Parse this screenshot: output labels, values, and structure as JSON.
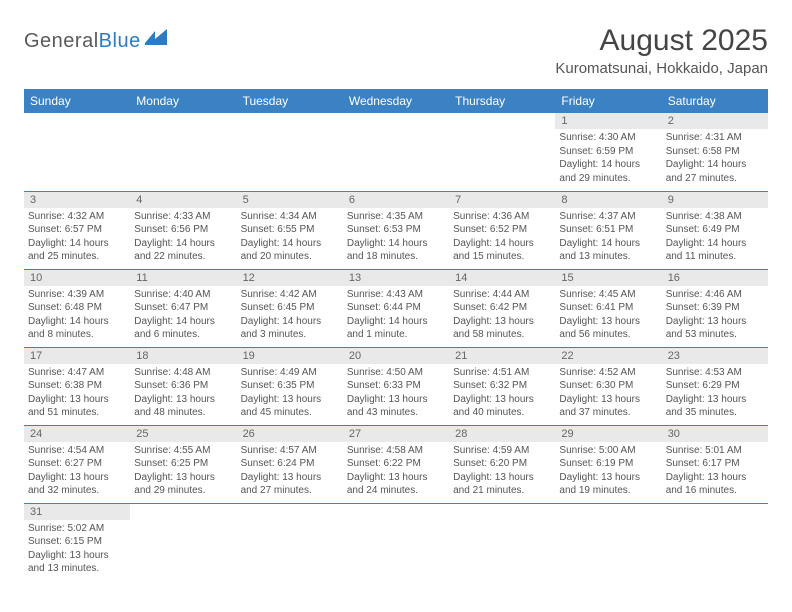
{
  "logo": {
    "part1": "General",
    "part2": "Blue"
  },
  "title": "August 2025",
  "location": "Kuromatsunai, Hokkaido, Japan",
  "colors": {
    "header_bg": "#3b82c4",
    "header_text": "#ffffff",
    "daynum_bg": "#e9e9e9",
    "text": "#555555",
    "logo_gray": "#5a5a5a",
    "logo_blue": "#2d7bc0",
    "row_border": "#3b82c4"
  },
  "dayNames": [
    "Sunday",
    "Monday",
    "Tuesday",
    "Wednesday",
    "Thursday",
    "Friday",
    "Saturday"
  ],
  "weeks": [
    [
      null,
      null,
      null,
      null,
      null,
      {
        "n": "1",
        "sr": "4:30 AM",
        "ss": "6:59 PM",
        "dl": "14 hours and 29 minutes."
      },
      {
        "n": "2",
        "sr": "4:31 AM",
        "ss": "6:58 PM",
        "dl": "14 hours and 27 minutes."
      }
    ],
    [
      {
        "n": "3",
        "sr": "4:32 AM",
        "ss": "6:57 PM",
        "dl": "14 hours and 25 minutes."
      },
      {
        "n": "4",
        "sr": "4:33 AM",
        "ss": "6:56 PM",
        "dl": "14 hours and 22 minutes."
      },
      {
        "n": "5",
        "sr": "4:34 AM",
        "ss": "6:55 PM",
        "dl": "14 hours and 20 minutes."
      },
      {
        "n": "6",
        "sr": "4:35 AM",
        "ss": "6:53 PM",
        "dl": "14 hours and 18 minutes."
      },
      {
        "n": "7",
        "sr": "4:36 AM",
        "ss": "6:52 PM",
        "dl": "14 hours and 15 minutes."
      },
      {
        "n": "8",
        "sr": "4:37 AM",
        "ss": "6:51 PM",
        "dl": "14 hours and 13 minutes."
      },
      {
        "n": "9",
        "sr": "4:38 AM",
        "ss": "6:49 PM",
        "dl": "14 hours and 11 minutes."
      }
    ],
    [
      {
        "n": "10",
        "sr": "4:39 AM",
        "ss": "6:48 PM",
        "dl": "14 hours and 8 minutes."
      },
      {
        "n": "11",
        "sr": "4:40 AM",
        "ss": "6:47 PM",
        "dl": "14 hours and 6 minutes."
      },
      {
        "n": "12",
        "sr": "4:42 AM",
        "ss": "6:45 PM",
        "dl": "14 hours and 3 minutes."
      },
      {
        "n": "13",
        "sr": "4:43 AM",
        "ss": "6:44 PM",
        "dl": "14 hours and 1 minute."
      },
      {
        "n": "14",
        "sr": "4:44 AM",
        "ss": "6:42 PM",
        "dl": "13 hours and 58 minutes."
      },
      {
        "n": "15",
        "sr": "4:45 AM",
        "ss": "6:41 PM",
        "dl": "13 hours and 56 minutes."
      },
      {
        "n": "16",
        "sr": "4:46 AM",
        "ss": "6:39 PM",
        "dl": "13 hours and 53 minutes."
      }
    ],
    [
      {
        "n": "17",
        "sr": "4:47 AM",
        "ss": "6:38 PM",
        "dl": "13 hours and 51 minutes."
      },
      {
        "n": "18",
        "sr": "4:48 AM",
        "ss": "6:36 PM",
        "dl": "13 hours and 48 minutes."
      },
      {
        "n": "19",
        "sr": "4:49 AM",
        "ss": "6:35 PM",
        "dl": "13 hours and 45 minutes."
      },
      {
        "n": "20",
        "sr": "4:50 AM",
        "ss": "6:33 PM",
        "dl": "13 hours and 43 minutes."
      },
      {
        "n": "21",
        "sr": "4:51 AM",
        "ss": "6:32 PM",
        "dl": "13 hours and 40 minutes."
      },
      {
        "n": "22",
        "sr": "4:52 AM",
        "ss": "6:30 PM",
        "dl": "13 hours and 37 minutes."
      },
      {
        "n": "23",
        "sr": "4:53 AM",
        "ss": "6:29 PM",
        "dl": "13 hours and 35 minutes."
      }
    ],
    [
      {
        "n": "24",
        "sr": "4:54 AM",
        "ss": "6:27 PM",
        "dl": "13 hours and 32 minutes."
      },
      {
        "n": "25",
        "sr": "4:55 AM",
        "ss": "6:25 PM",
        "dl": "13 hours and 29 minutes."
      },
      {
        "n": "26",
        "sr": "4:57 AM",
        "ss": "6:24 PM",
        "dl": "13 hours and 27 minutes."
      },
      {
        "n": "27",
        "sr": "4:58 AM",
        "ss": "6:22 PM",
        "dl": "13 hours and 24 minutes."
      },
      {
        "n": "28",
        "sr": "4:59 AM",
        "ss": "6:20 PM",
        "dl": "13 hours and 21 minutes."
      },
      {
        "n": "29",
        "sr": "5:00 AM",
        "ss": "6:19 PM",
        "dl": "13 hours and 19 minutes."
      },
      {
        "n": "30",
        "sr": "5:01 AM",
        "ss": "6:17 PM",
        "dl": "13 hours and 16 minutes."
      }
    ],
    [
      {
        "n": "31",
        "sr": "5:02 AM",
        "ss": "6:15 PM",
        "dl": "13 hours and 13 minutes."
      },
      null,
      null,
      null,
      null,
      null,
      null
    ]
  ],
  "labels": {
    "sunrise": "Sunrise:",
    "sunset": "Sunset:",
    "daylight": "Daylight:"
  }
}
